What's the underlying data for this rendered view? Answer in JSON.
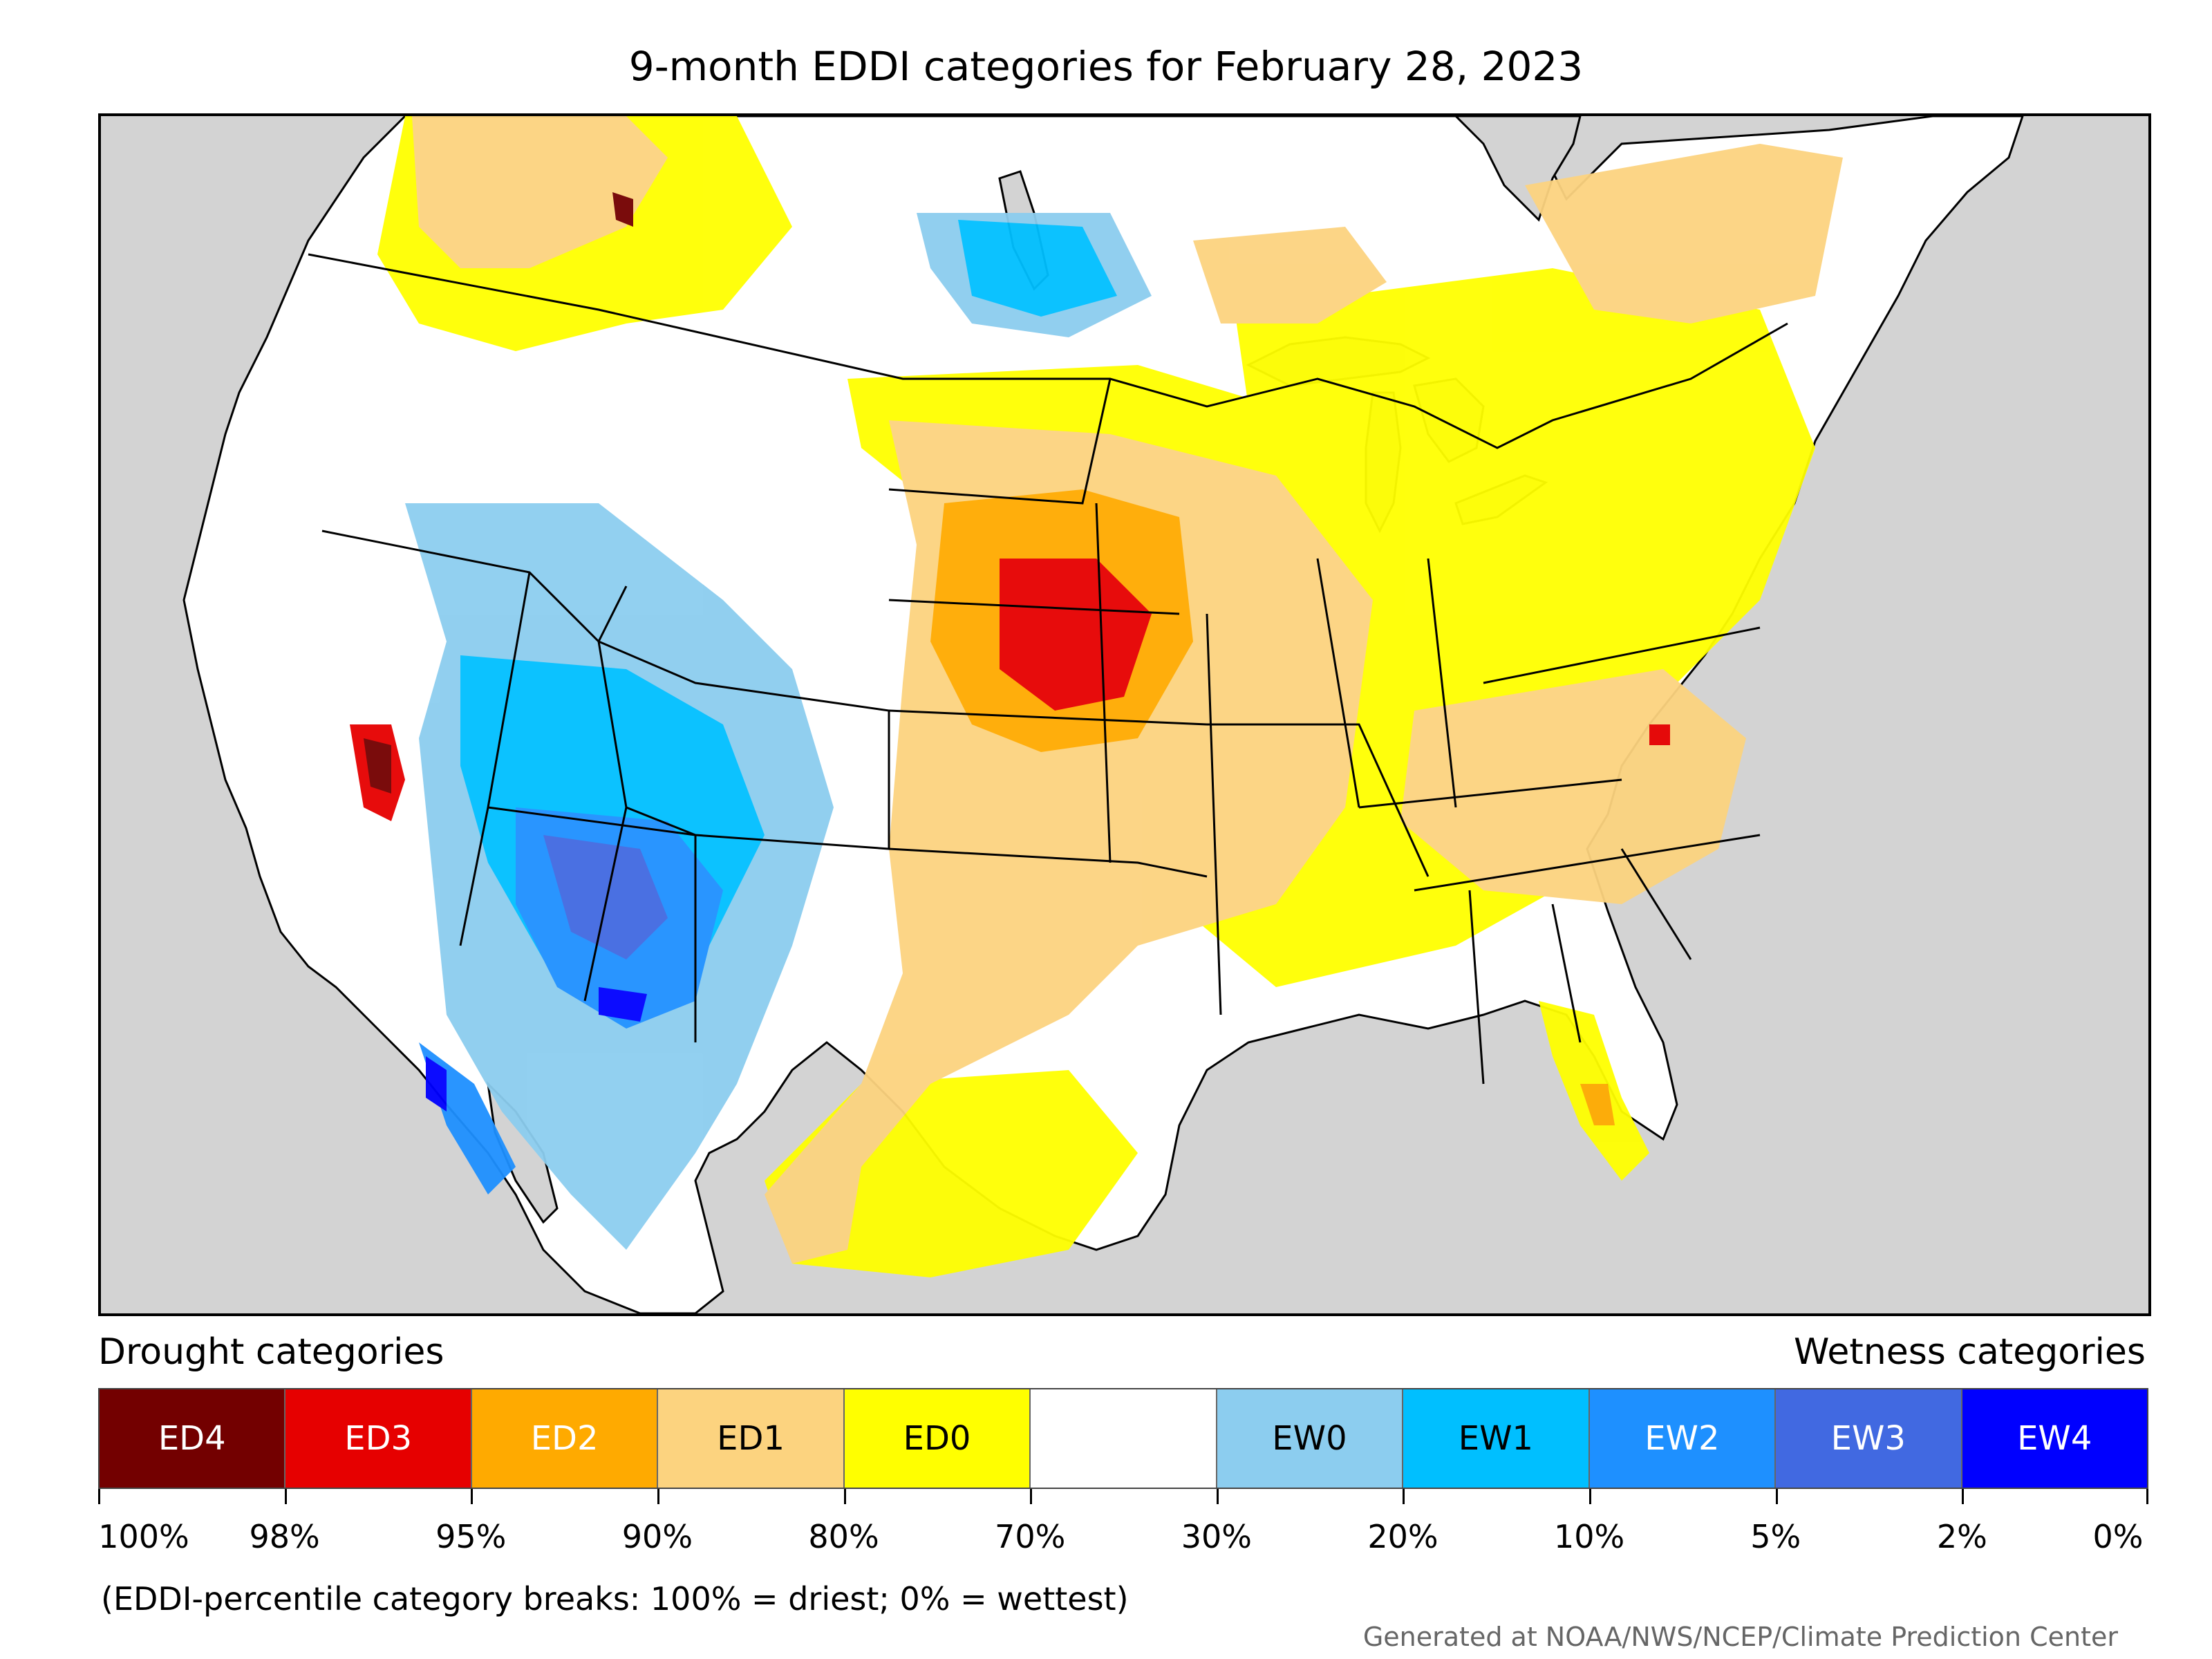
{
  "title": "9-month EDDI categories for February 28, 2023",
  "legend": {
    "drought_heading": "Drought categories",
    "wetness_heading": "Wetness categories",
    "categories": [
      {
        "label": "ED4",
        "color": "#730000",
        "text_color": "#ffffff"
      },
      {
        "label": "ED3",
        "color": "#e60000",
        "text_color": "#ffffff"
      },
      {
        "label": "ED2",
        "color": "#ffaa00",
        "text_color": "#ffffff"
      },
      {
        "label": "ED1",
        "color": "#fcd37f",
        "text_color": "#000000"
      },
      {
        "label": "ED0",
        "color": "#ffff00",
        "text_color": "#000000"
      },
      {
        "label": "",
        "color": "#ffffff",
        "text_color": "#000000"
      },
      {
        "label": "EW0",
        "color": "#8ccdef",
        "text_color": "#000000"
      },
      {
        "label": "EW1",
        "color": "#00bfff",
        "text_color": "#000000"
      },
      {
        "label": "EW2",
        "color": "#1e90ff",
        "text_color": "#ffffff"
      },
      {
        "label": "EW3",
        "color": "#4169e1",
        "text_color": "#ffffff"
      },
      {
        "label": "EW4",
        "color": "#0000ff",
        "text_color": "#ffffff"
      }
    ],
    "breaks": [
      "100%",
      "98%",
      "95%",
      "90%",
      "80%",
      "70%",
      "30%",
      "20%",
      "10%",
      "5%",
      "2%",
      "0%"
    ]
  },
  "note": "(EDDI-percentile category breaks: 100% = driest; 0% = wettest)",
  "credit": "Generated at NOAA/NWS/NCEP/Climate Prediction Center",
  "map_colors": {
    "ocean": "#d3d3d3",
    "land": "#ffffff"
  }
}
